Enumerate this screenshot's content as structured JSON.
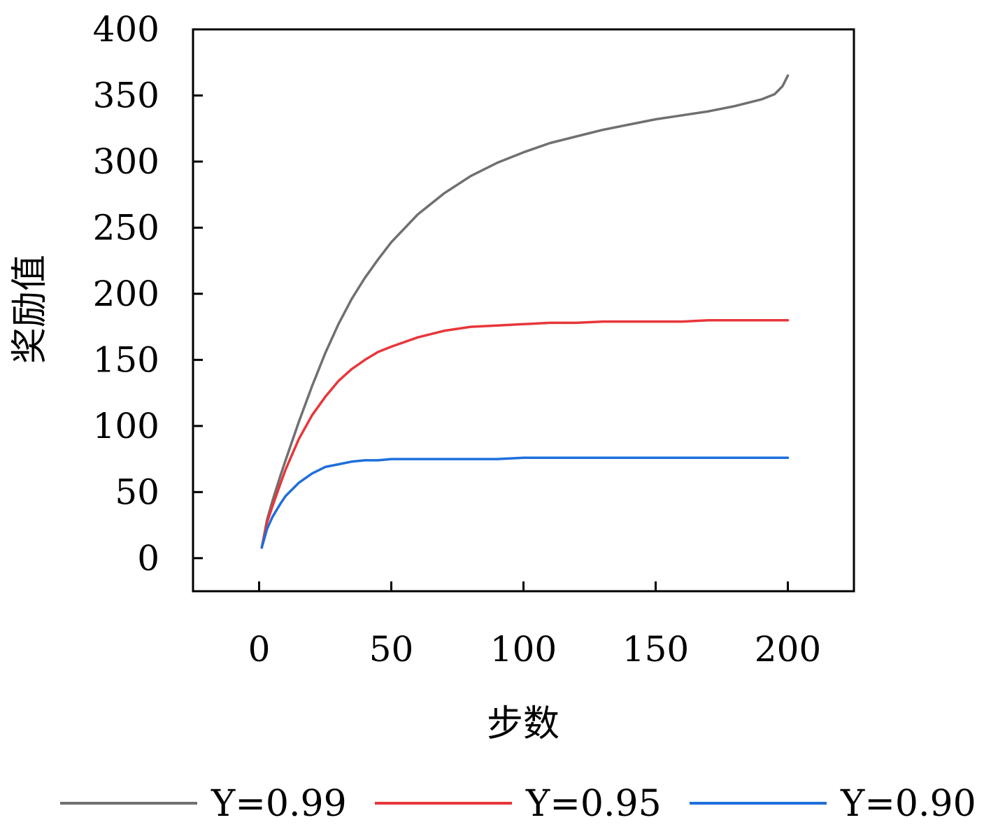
{
  "chart_data": {
    "type": "line",
    "title": "",
    "xlabel": "步数",
    "ylabel": "奖励值",
    "xlim": [
      -25,
      225
    ],
    "ylim": [
      -25,
      400
    ],
    "xticks": [
      0,
      50,
      100,
      150,
      200
    ],
    "yticks": [
      0,
      50,
      100,
      150,
      200,
      250,
      300,
      350,
      400
    ],
    "grid": false,
    "legend_position": "bottom",
    "x": [
      1,
      3,
      5,
      8,
      10,
      15,
      20,
      25,
      30,
      35,
      40,
      45,
      50,
      60,
      70,
      80,
      90,
      100,
      110,
      120,
      130,
      140,
      150,
      160,
      170,
      180,
      190,
      195,
      198,
      200
    ],
    "series": [
      {
        "name": "Υ=0.99",
        "color": "#707070",
        "values": [
          8,
          29,
          43,
          62,
          74,
          103,
          130,
          155,
          177,
          196,
          212,
          226,
          239,
          260,
          276,
          289,
          299,
          307,
          314,
          319,
          324,
          328,
          332,
          335,
          338,
          342,
          347,
          351,
          357,
          365
        ]
      },
      {
        "name": "Υ=0.95",
        "color": "#e8363a",
        "values": [
          8,
          27,
          39,
          56,
          67,
          90,
          108,
          122,
          134,
          143,
          150,
          156,
          160,
          167,
          172,
          175,
          176,
          177,
          178,
          178,
          179,
          179,
          179,
          179,
          180,
          180,
          180,
          180,
          180,
          180
        ]
      },
      {
        "name": "Υ=0.90",
        "color": "#1e6fdb",
        "values": [
          8,
          22,
          31,
          41,
          47,
          57,
          64,
          69,
          71,
          73,
          74,
          74,
          75,
          75,
          75,
          75,
          75,
          76,
          76,
          76,
          76,
          76,
          76,
          76,
          76,
          76,
          76,
          76,
          76,
          76
        ]
      }
    ]
  }
}
